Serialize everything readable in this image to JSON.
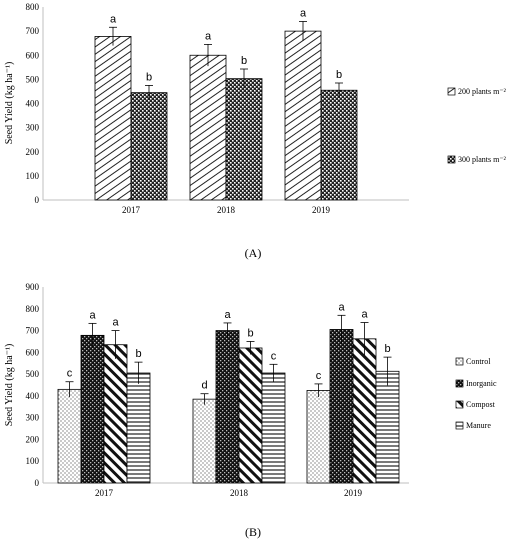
{
  "chart_data": [
    {
      "type": "bar",
      "panel_label": "(A)",
      "ylabel": "Seed Yield (kg ha⁻¹)",
      "xlabel": "",
      "ylim": [
        0,
        800
      ],
      "yticks": [
        0,
        100,
        200,
        300,
        400,
        500,
        600,
        700,
        800
      ],
      "grid": false,
      "legend_position": "right",
      "categories": [
        "2017",
        "2018",
        "2019"
      ],
      "series": [
        {
          "name": "200 plants m⁻²",
          "pattern": "diagonal-hatch",
          "values": [
            678,
            600,
            700
          ],
          "errors": [
            38,
            45,
            40
          ],
          "letters": [
            "a",
            "a",
            "a"
          ]
        },
        {
          "name": "300 plants m⁻²",
          "pattern": "dense-dots",
          "values": [
            445,
            503,
            455
          ],
          "errors": [
            30,
            40,
            30
          ],
          "letters": [
            "b",
            "b",
            "b"
          ]
        }
      ]
    },
    {
      "type": "bar",
      "panel_label": "(B)",
      "ylabel": "Seed Yield (kg ha⁻¹)",
      "xlabel": "",
      "ylim": [
        0,
        900
      ],
      "yticks": [
        0,
        100,
        200,
        300,
        400,
        500,
        600,
        700,
        800,
        900
      ],
      "grid": false,
      "legend_position": "right",
      "categories": [
        "2017",
        "2018",
        "2019"
      ],
      "series": [
        {
          "name": "Control",
          "pattern": "sparse-dots",
          "values": [
            430,
            385,
            425
          ],
          "errors": [
            35,
            25,
            30
          ],
          "letters": [
            "c",
            "d",
            "c"
          ]
        },
        {
          "name": "Inorganic",
          "pattern": "dark-checker",
          "values": [
            678,
            700,
            705
          ],
          "errors": [
            55,
            35,
            65
          ],
          "letters": [
            "a",
            "a",
            "a"
          ]
        },
        {
          "name": "Compost",
          "pattern": "wide-diagonal",
          "values": [
            635,
            620,
            662
          ],
          "errors": [
            65,
            30,
            75
          ],
          "letters": [
            "a",
            "b",
            "a"
          ]
        },
        {
          "name": "Manure",
          "pattern": "horizontal-lines",
          "values": [
            505,
            505,
            513
          ],
          "errors": [
            50,
            40,
            65
          ],
          "letters": [
            "b",
            "c",
            "b"
          ]
        }
      ]
    }
  ]
}
